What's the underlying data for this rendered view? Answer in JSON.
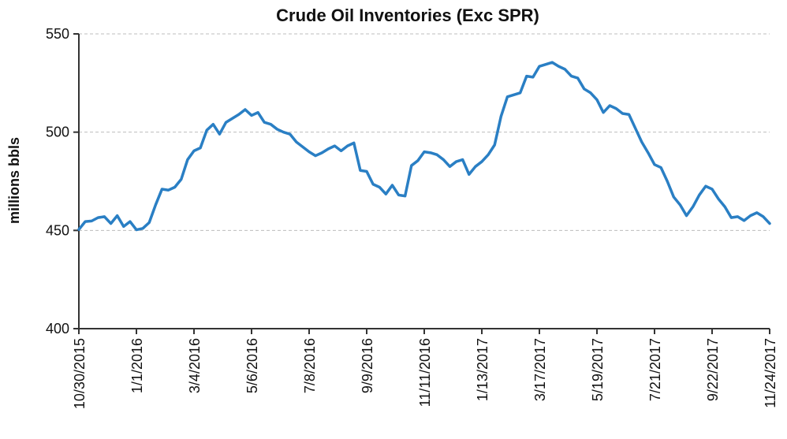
{
  "chart_data": {
    "type": "line",
    "title": "Crude Oil Inventories (Exc SPR)",
    "xlabel": "",
    "ylabel": "millions bbls",
    "ylim": [
      400,
      550
    ],
    "yticks": [
      400,
      450,
      500,
      550
    ],
    "grid": "horizontal dashed",
    "legend": "none",
    "line_color": "#2a7fc4",
    "x_tick_labels": [
      "10/30/2015",
      "1/1/2016",
      "3/4/2016",
      "5/6/2016",
      "7/8/2016",
      "9/9/2016",
      "11/11/2016",
      "1/13/2017",
      "3/17/2017",
      "5/19/2017",
      "7/21/2017",
      "9/22/2017",
      "11/24/2017"
    ],
    "x": [
      "10/30/2015",
      "11/6/2015",
      "11/13/2015",
      "11/20/2015",
      "11/27/2015",
      "12/4/2015",
      "12/11/2015",
      "12/18/2015",
      "12/25/2015",
      "1/1/2016",
      "1/8/2016",
      "1/15/2016",
      "1/22/2016",
      "1/29/2016",
      "2/5/2016",
      "2/12/2016",
      "2/19/2016",
      "2/26/2016",
      "3/4/2016",
      "3/11/2016",
      "3/18/2016",
      "3/25/2016",
      "4/1/2016",
      "4/8/2016",
      "4/15/2016",
      "4/22/2016",
      "4/29/2016",
      "5/6/2016",
      "5/13/2016",
      "5/20/2016",
      "5/27/2016",
      "6/3/2016",
      "6/10/2016",
      "6/17/2016",
      "6/24/2016",
      "7/1/2016",
      "7/8/2016",
      "7/15/2016",
      "7/22/2016",
      "7/29/2016",
      "8/5/2016",
      "8/12/2016",
      "8/19/2016",
      "8/26/2016",
      "9/2/2016",
      "9/9/2016",
      "9/16/2016",
      "9/23/2016",
      "9/30/2016",
      "10/7/2016",
      "10/14/2016",
      "10/21/2016",
      "10/28/2016",
      "11/4/2016",
      "11/11/2016",
      "11/18/2016",
      "11/25/2016",
      "12/2/2016",
      "12/9/2016",
      "12/16/2016",
      "12/23/2016",
      "12/30/2016",
      "1/6/2017",
      "1/13/2017",
      "1/20/2017",
      "1/27/2017",
      "2/3/2017",
      "2/10/2017",
      "2/17/2017",
      "2/24/2017",
      "3/3/2017",
      "3/10/2017",
      "3/17/2017",
      "3/24/2017",
      "3/31/2017",
      "4/7/2017",
      "4/14/2017",
      "4/21/2017",
      "4/28/2017",
      "5/5/2017",
      "5/12/2017",
      "5/19/2017",
      "5/26/2017",
      "6/2/2017",
      "6/9/2017",
      "6/16/2017",
      "6/23/2017",
      "6/30/2017",
      "7/7/2017",
      "7/14/2017",
      "7/21/2017",
      "7/28/2017",
      "8/4/2017",
      "8/11/2017",
      "8/18/2017",
      "8/25/2017",
      "9/1/2017",
      "9/8/2017",
      "9/15/2017",
      "9/22/2017",
      "9/29/2017",
      "10/6/2017",
      "10/13/2017",
      "10/20/2017",
      "10/27/2017",
      "11/3/2017",
      "11/10/2017",
      "11/17/2017",
      "11/24/2017"
    ],
    "series": [
      {
        "values": [
          450.5,
          454.5,
          454.8,
          456.5,
          457.0,
          453.5,
          457.5,
          452.0,
          454.5,
          450.3,
          451.0,
          454.0,
          463.0,
          471.0,
          470.5,
          472.0,
          476.0,
          486.0,
          490.5,
          492.0,
          501.0,
          504.0,
          499.0,
          505.0,
          507.0,
          509.0,
          511.5,
          508.5,
          510.0,
          505.0,
          504.0,
          501.5,
          500.0,
          499.0,
          495.0,
          492.5,
          490.0,
          488.0,
          489.5,
          491.5,
          493.0,
          490.5,
          493.0,
          494.5,
          480.5,
          480.0,
          473.5,
          472.0,
          468.5,
          473.0,
          468.0,
          467.5,
          483.0,
          485.5,
          490.0,
          489.5,
          488.5,
          486.0,
          482.5,
          485.0,
          486.0,
          478.5,
          482.5,
          485.0,
          488.5,
          493.5,
          508.0,
          518.0,
          519.0,
          520.0,
          528.5,
          528.0,
          533.5,
          534.5,
          535.5,
          533.5,
          532.0,
          528.5,
          527.5,
          522.0,
          520.0,
          516.5,
          510.0,
          513.5,
          512.0,
          509.5,
          509.0,
          502.0,
          495.0,
          489.5,
          483.5,
          482.0,
          475.0,
          467.0,
          463.0,
          457.5,
          462.0,
          468.0,
          472.5,
          471.0,
          466.0,
          462.0,
          456.5,
          457.0,
          455.0,
          457.5,
          459.0,
          457.0,
          453.5
        ]
      }
    ]
  }
}
